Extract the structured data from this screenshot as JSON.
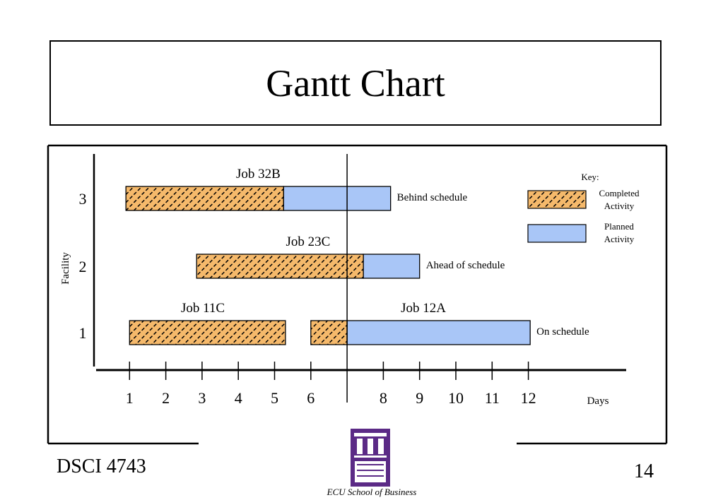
{
  "slide": {
    "title": "Gantt Chart",
    "course": "DSCI 4743",
    "page_number": "14",
    "school": "ECU School of Business",
    "logo": "East Carolina University logo"
  },
  "chart_data": {
    "type": "gantt",
    "xlabel": "Days",
    "ylabel": "Facility",
    "x_ticks": [
      1,
      2,
      3,
      4,
      5,
      6,
      7,
      8,
      9,
      10,
      11,
      12
    ],
    "x_tick_labels": [
      "1",
      "2",
      "3",
      "4",
      "5",
      "6",
      "",
      "8",
      "9",
      "10",
      "11",
      "12"
    ],
    "facilities": [
      "1",
      "2",
      "3"
    ],
    "current_day": 7,
    "key": {
      "title": "Key:",
      "completed_label": "Completed Activity",
      "planned_label": "Planned Activity"
    },
    "colors": {
      "completed_base": "#f5b96b",
      "completed_hatch": "#000000",
      "planned": "#a9c6f7"
    },
    "jobs": [
      {
        "name": "Job 32B",
        "facility": "3",
        "completed": [
          [
            0.9,
            5.25
          ]
        ],
        "planned": [
          [
            5.25,
            8.2
          ]
        ],
        "status": "Behind schedule"
      },
      {
        "name": "Job 23C",
        "facility": "2",
        "completed": [
          [
            2.85,
            7.45
          ]
        ],
        "planned": [
          [
            7.45,
            9.0
          ]
        ],
        "status": "Ahead of schedule"
      },
      {
        "name": "Job 11C",
        "facility": "1",
        "completed": [
          [
            1.0,
            5.3
          ]
        ],
        "planned": [],
        "status": ""
      },
      {
        "name": "Job 12A",
        "facility": "1",
        "completed": [
          [
            6.0,
            7.0
          ]
        ],
        "planned": [
          [
            7.0,
            12.05
          ]
        ],
        "status": "On schedule"
      }
    ]
  }
}
